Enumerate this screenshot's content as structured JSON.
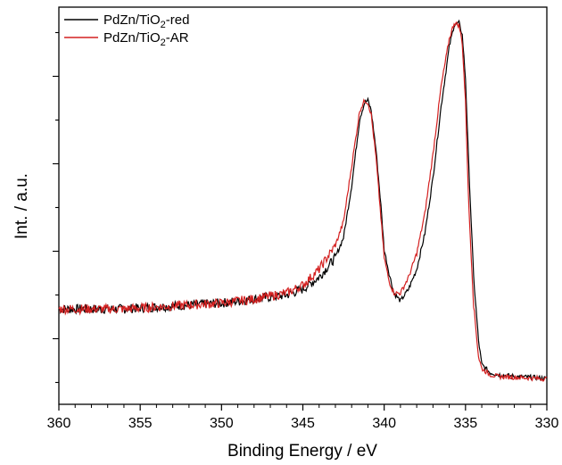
{
  "chart_data": {
    "type": "line",
    "title": "",
    "xlabel": "Binding Energy / eV",
    "ylabel": "Int. / a.u.",
    "xlim": [
      360,
      330
    ],
    "x_reversed": true,
    "ylim": [
      0,
      1
    ],
    "y_tick_labels_shown": false,
    "x_ticks": [
      360,
      355,
      350,
      345,
      340,
      335,
      330
    ],
    "x_tick_labels": [
      "360",
      "355",
      "350",
      "345",
      "340",
      "335",
      "330"
    ],
    "grid": false,
    "legend": {
      "position": "top-left",
      "entries": [
        {
          "base": "PdZn/TiO",
          "sub": "2",
          "suffix": "-red"
        },
        {
          "base": "PdZn/TiO",
          "sub": "2",
          "suffix": "-AR"
        }
      ]
    },
    "series": [
      {
        "name": "PdZn/TiO2-red",
        "color": "#000000",
        "x": [
          360,
          358,
          356,
          354,
          352,
          350,
          348,
          346,
          345,
          344,
          343,
          342.5,
          342,
          341.5,
          341.2,
          341,
          340.8,
          340.5,
          340.2,
          340,
          339.7,
          339.4,
          339,
          338.5,
          338,
          337.5,
          337,
          336.5,
          336,
          335.7,
          335.4,
          335.2,
          335,
          334.8,
          334.5,
          334.2,
          334,
          333.5,
          333,
          332,
          331,
          330
        ],
        "y": [
          0.24,
          0.24,
          0.24,
          0.245,
          0.25,
          0.255,
          0.265,
          0.275,
          0.29,
          0.32,
          0.37,
          0.42,
          0.55,
          0.72,
          0.76,
          0.765,
          0.74,
          0.64,
          0.5,
          0.39,
          0.33,
          0.28,
          0.26,
          0.29,
          0.34,
          0.43,
          0.57,
          0.75,
          0.9,
          0.955,
          0.96,
          0.93,
          0.82,
          0.6,
          0.32,
          0.16,
          0.1,
          0.08,
          0.075,
          0.07,
          0.068,
          0.065
        ]
      },
      {
        "name": "PdZn/TiO2-AR",
        "color": "#d42020",
        "x": [
          360,
          358,
          356,
          354,
          352,
          350,
          348,
          346,
          345,
          344,
          343,
          342.5,
          342,
          341.5,
          341.2,
          341,
          340.8,
          340.5,
          340.2,
          340,
          339.7,
          339.4,
          339,
          338.5,
          338,
          337.5,
          337,
          336.5,
          336,
          335.7,
          335.4,
          335.2,
          335,
          334.8,
          334.5,
          334.2,
          334,
          333.5,
          333,
          332,
          331,
          330
        ],
        "y": [
          0.24,
          0.24,
          0.24,
          0.245,
          0.25,
          0.255,
          0.265,
          0.28,
          0.3,
          0.34,
          0.4,
          0.46,
          0.6,
          0.74,
          0.765,
          0.76,
          0.73,
          0.62,
          0.47,
          0.37,
          0.31,
          0.28,
          0.28,
          0.32,
          0.38,
          0.48,
          0.63,
          0.8,
          0.92,
          0.96,
          0.955,
          0.91,
          0.76,
          0.5,
          0.25,
          0.12,
          0.09,
          0.075,
          0.07,
          0.068,
          0.066,
          0.064
        ]
      }
    ]
  }
}
